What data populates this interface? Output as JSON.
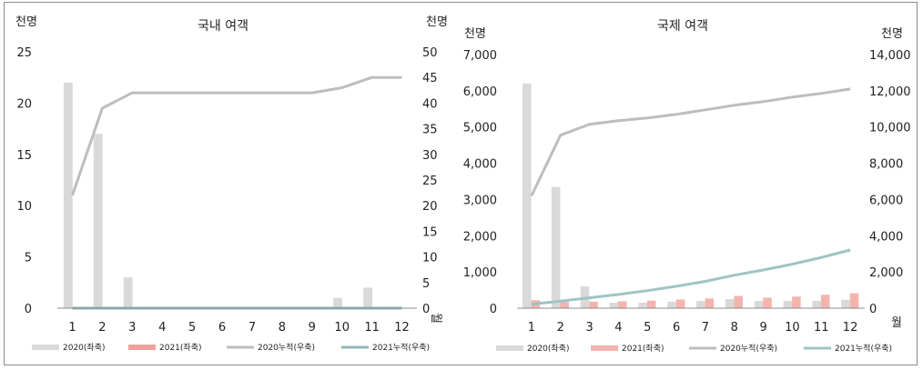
{
  "chart_data": [
    {
      "type": "bar+line",
      "title": "국내 여객",
      "left_unit": "천명",
      "right_unit": "천명",
      "x_unit": "월",
      "categories": [
        "1",
        "2",
        "3",
        "4",
        "5",
        "6",
        "7",
        "8",
        "9",
        "10",
        "11",
        "12"
      ],
      "left_axis": {
        "min": 0,
        "max": 25,
        "ticks": [
          "0",
          "5",
          "10",
          "15",
          "20",
          "25"
        ]
      },
      "right_axis": {
        "min": 0,
        "max": 50,
        "ticks": [
          "0",
          "5",
          "10",
          "15",
          "20",
          "25",
          "30",
          "35",
          "40",
          "45",
          "50"
        ]
      },
      "series": [
        {
          "name": "2020(좌축)",
          "kind": "bar",
          "axis": "left",
          "color": "#d9d9d9",
          "values": [
            22,
            17,
            3,
            0,
            0,
            0,
            0,
            0,
            0,
            1,
            2,
            0
          ]
        },
        {
          "name": "2021(좌축)",
          "kind": "bar",
          "axis": "left",
          "color": "#f4a09a",
          "values": [
            0,
            0,
            0,
            0,
            0,
            0,
            0,
            0,
            0,
            0,
            0,
            0
          ]
        },
        {
          "name": "2020누적(우축)",
          "kind": "line",
          "axis": "right",
          "color": "#bdbdbd",
          "values": [
            22,
            39,
            42,
            42,
            42,
            42,
            42,
            42,
            42,
            43,
            45,
            45
          ]
        },
        {
          "name": "2021누적(우축)",
          "kind": "line",
          "axis": "right",
          "color": "#8fb8b8",
          "values": [
            0,
            0,
            0,
            0,
            0,
            0,
            0,
            0,
            0,
            0,
            0,
            0
          ]
        }
      ]
    },
    {
      "type": "bar+line",
      "title": "국제 여객",
      "left_unit": "천명",
      "right_unit": "천명",
      "x_unit": "월",
      "categories": [
        "1",
        "2",
        "3",
        "4",
        "5",
        "6",
        "7",
        "8",
        "9",
        "10",
        "11",
        "12"
      ],
      "left_axis": {
        "min": 0,
        "max": 7000,
        "ticks": [
          "0",
          "1,000",
          "2,000",
          "3,000",
          "4,000",
          "5,000",
          "6,000",
          "7,000"
        ]
      },
      "right_axis": {
        "min": 0,
        "max": 14000,
        "ticks": [
          "0",
          "2,000",
          "4,000",
          "6,000",
          "8,000",
          "10,000",
          "12,000",
          "14,000"
        ]
      },
      "series": [
        {
          "name": "2020(좌축)",
          "kind": "bar",
          "axis": "left",
          "color": "#d9d9d9",
          "values": [
            6200,
            3350,
            600,
            150,
            150,
            180,
            200,
            250,
            200,
            200,
            200,
            230
          ]
        },
        {
          "name": "2021(좌축)",
          "kind": "bar",
          "axis": "left",
          "color": "#f4b4ae",
          "values": [
            220,
            170,
            180,
            190,
            210,
            240,
            270,
            340,
            290,
            320,
            370,
            410
          ]
        },
        {
          "name": "2020누적(우축)",
          "kind": "line",
          "axis": "right",
          "color": "#bdbdbd",
          "values": [
            6200,
            9550,
            10150,
            10350,
            10500,
            10700,
            10950,
            11200,
            11400,
            11650,
            11850,
            12100
          ]
        },
        {
          "name": "2021누적(우축)",
          "kind": "line",
          "axis": "right",
          "color": "#9fc4c4",
          "values": [
            220,
            390,
            570,
            760,
            970,
            1210,
            1480,
            1820,
            2110,
            2430,
            2800,
            3210
          ]
        }
      ]
    }
  ]
}
